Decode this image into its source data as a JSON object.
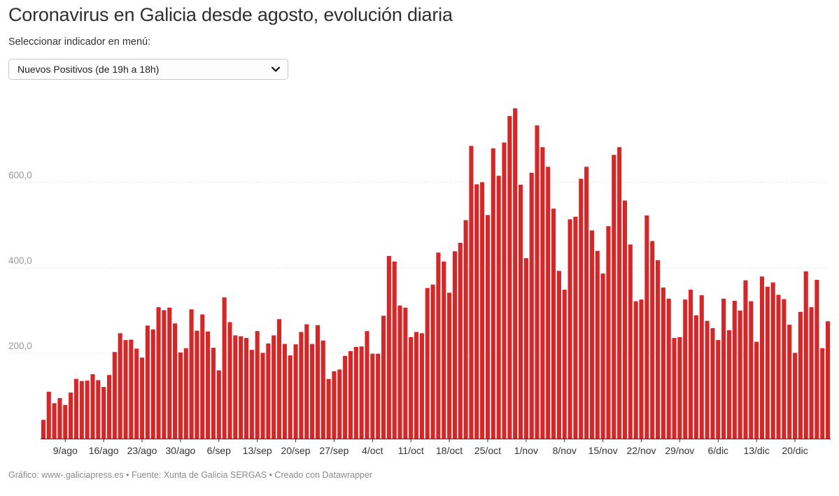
{
  "header": {
    "title": "Coronavirus en Galicia desde agosto, evolución diaria",
    "subtitle": "Seleccionar indicador en menú:"
  },
  "selector": {
    "selected": "Nuevos Positivos (de 19h a 18h)",
    "icon": "chevron-down-icon"
  },
  "footer": {
    "text": "Gráfico: www-.galiciapress.es • Fuente: Xunta de Galicia SERGAS • Creado con Datawrapper"
  },
  "colors": {
    "bar": "#d62728",
    "grid": "#dcdcdc",
    "tick_label": "#9a9a9a",
    "x_label": "#333333"
  },
  "chart_data": {
    "type": "bar",
    "title": "",
    "xlabel": "",
    "ylabel": "",
    "ylim": [
      0,
      780
    ],
    "yticks": [
      {
        "value": 200,
        "label": "200,0"
      },
      {
        "value": 400,
        "label": "400,0"
      },
      {
        "value": 600,
        "label": "600,0"
      }
    ],
    "xticks": [
      {
        "index": 4,
        "label": "9/ago"
      },
      {
        "index": 11,
        "label": "16/ago"
      },
      {
        "index": 18,
        "label": "23/ago"
      },
      {
        "index": 25,
        "label": "30/ago"
      },
      {
        "index": 32,
        "label": "6/sep"
      },
      {
        "index": 39,
        "label": "13/sep"
      },
      {
        "index": 46,
        "label": "20/sep"
      },
      {
        "index": 53,
        "label": "27/sep"
      },
      {
        "index": 60,
        "label": "4/oct"
      },
      {
        "index": 67,
        "label": "11/oct"
      },
      {
        "index": 74,
        "label": "18/oct"
      },
      {
        "index": 81,
        "label": "25/oct"
      },
      {
        "index": 88,
        "label": "1/nov"
      },
      {
        "index": 95,
        "label": "8/nov"
      },
      {
        "index": 102,
        "label": "15/nov"
      },
      {
        "index": 109,
        "label": "22/nov"
      },
      {
        "index": 116,
        "label": "29/nov"
      },
      {
        "index": 123,
        "label": "6/dic"
      },
      {
        "index": 130,
        "label": "13/dic"
      },
      {
        "index": 137,
        "label": "20/dic"
      }
    ],
    "values": [
      44,
      110,
      83,
      95,
      79,
      108,
      140,
      135,
      136,
      151,
      137,
      121,
      149,
      203,
      247,
      231,
      232,
      211,
      190,
      265,
      256,
      308,
      301,
      307,
      270,
      202,
      212,
      303,
      253,
      291,
      251,
      213,
      160,
      331,
      273,
      242,
      240,
      236,
      208,
      252,
      201,
      223,
      242,
      280,
      222,
      195,
      221,
      250,
      268,
      222,
      266,
      230,
      140,
      158,
      162,
      194,
      205,
      215,
      216,
      252,
      199,
      199,
      288,
      428,
      415,
      312,
      307,
      238,
      250,
      247,
      353,
      361,
      436,
      415,
      342,
      439,
      459,
      512,
      686,
      596,
      601,
      524,
      680,
      616,
      694,
      756,
      774,
      595,
      423,
      623,
      734,
      683,
      637,
      539,
      393,
      349,
      514,
      520,
      609,
      637,
      488,
      440,
      387,
      498,
      665,
      683,
      558,
      455,
      322,
      326,
      523,
      463,
      418,
      354,
      328,
      236,
      238,
      326,
      349,
      289,
      336,
      276,
      259,
      231,
      328,
      254,
      323,
      300,
      371,
      322,
      227,
      380,
      356,
      366,
      337,
      327,
      267,
      201,
      297,
      392,
      308,
      372,
      212,
      275
    ]
  }
}
